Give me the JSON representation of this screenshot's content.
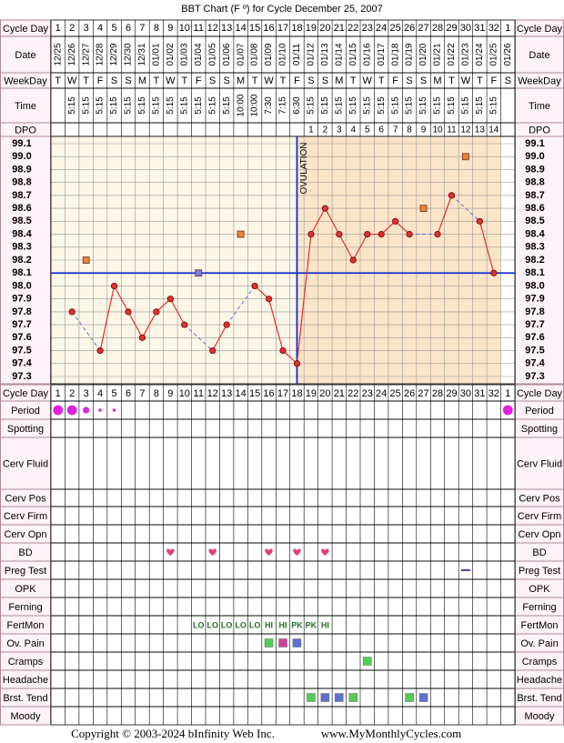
{
  "labels": {
    "cycle_day": "Cycle Day",
    "date": "Date",
    "weekday": "WeekDay",
    "time": "Time",
    "dpo": "DPO",
    "period": "Period",
    "spotting": "Spotting",
    "cerv_fluid": "Cerv Fluid",
    "cerv_pos": "Cerv Pos",
    "cerv_firm": "Cerv Firm",
    "cerv_opn": "Cerv Opn",
    "bd": "BD",
    "preg_test": "Preg Test",
    "opk": "OPK",
    "ferning": "Ferning",
    "fertmon": "FertMon",
    "ov_pain": "Ov. Pain",
    "cramps": "Cramps",
    "headache": "Headache",
    "brst_tend": "Brst. Tend",
    "moody": "Moody"
  },
  "cycle_days": [
    1,
    2,
    3,
    4,
    5,
    6,
    7,
    8,
    9,
    10,
    11,
    12,
    13,
    14,
    15,
    16,
    17,
    18,
    19,
    20,
    21,
    22,
    23,
    24,
    25,
    26,
    27,
    28,
    29,
    30,
    31,
    32,
    1
  ],
  "dates": [
    "12/25",
    "12/26",
    "12/27",
    "12/28",
    "12/29",
    "12/30",
    "12/31",
    "01/01",
    "01/02",
    "01/03",
    "01/04",
    "01/05",
    "01/06",
    "01/07",
    "01/08",
    "01/09",
    "01/10",
    "01/11",
    "01/12",
    "01/13",
    "01/14",
    "01/15",
    "01/16",
    "01/17",
    "01/18",
    "01/19",
    "01/20",
    "01/21",
    "01/22",
    "01/23",
    "01/24",
    "01/25",
    "01/26"
  ],
  "weekdays": [
    "T",
    "W",
    "T",
    "F",
    "S",
    "S",
    "M",
    "T",
    "W",
    "T",
    "F",
    "S",
    "S",
    "M",
    "T",
    "W",
    "T",
    "F",
    "S",
    "S",
    "M",
    "T",
    "W",
    "T",
    "F",
    "S",
    "S",
    "M",
    "T",
    "W",
    "T",
    "F",
    "S"
  ],
  "times": [
    null,
    "5:15",
    "5:15",
    "5:15",
    "5:15",
    "5:15",
    "5:15",
    "5:15",
    "5:15",
    "5:15",
    "5:15",
    "5:15",
    "5:15",
    "10:00",
    "10:00",
    "7:30",
    "7:15",
    "6:30",
    "5:15",
    "5:15",
    "5:15",
    "5:15",
    "5:15",
    "5:15",
    "5:15",
    "5:15",
    "5:15",
    "5:15",
    "5:15",
    "5:15",
    "5:15",
    "5:15",
    null
  ],
  "dpo": [
    null,
    null,
    null,
    null,
    null,
    null,
    null,
    null,
    null,
    null,
    null,
    null,
    null,
    null,
    null,
    null,
    null,
    null,
    1,
    2,
    3,
    4,
    5,
    6,
    7,
    8,
    9,
    10,
    11,
    12,
    13,
    14,
    null
  ],
  "period": [
    3,
    3,
    2,
    1,
    1,
    null,
    null,
    null,
    null,
    null,
    null,
    null,
    null,
    null,
    null,
    null,
    null,
    null,
    null,
    null,
    null,
    null,
    null,
    null,
    null,
    null,
    null,
    null,
    null,
    null,
    null,
    null,
    3
  ],
  "period_color": "#e020e0",
  "bd_days": [
    9,
    12,
    16,
    18,
    20
  ],
  "bd_color": "#e0407a",
  "preg_test": [
    {
      "day": 30,
      "color": "#7030a0"
    }
  ],
  "fertmon": [
    {
      "day": 11,
      "label": "LO"
    },
    {
      "day": 12,
      "label": "LO"
    },
    {
      "day": 13,
      "label": "LO"
    },
    {
      "day": 14,
      "label": "LO"
    },
    {
      "day": 15,
      "label": "LO"
    },
    {
      "day": 16,
      "label": "HI"
    },
    {
      "day": 17,
      "label": "HI"
    },
    {
      "day": 18,
      "label": "PK"
    },
    {
      "day": 19,
      "label": "PK"
    },
    {
      "day": 20,
      "label": "HI"
    }
  ],
  "fertmon_color": "#207020",
  "ov_pain": [
    {
      "day": 16,
      "color": "#55cc55"
    },
    {
      "day": 17,
      "color": "#d040a0"
    },
    {
      "day": 18,
      "color": "#6070d0"
    }
  ],
  "cramps": [
    {
      "day": 23,
      "color": "#55cc55"
    }
  ],
  "brst_tend": [
    {
      "day": 19,
      "color": "#55cc55"
    },
    {
      "day": 20,
      "color": "#6070d0"
    },
    {
      "day": 21,
      "color": "#6070d0"
    },
    {
      "day": 22,
      "color": "#55cc55"
    },
    {
      "day": 26,
      "color": "#55cc55"
    },
    {
      "day": 27,
      "color": "#6070d0"
    }
  ],
  "footer": {
    "copyright": "Copyright © 2003-2024 bInfinity Web Inc.",
    "site": "www.MyMonthlyCycles.com"
  },
  "chart_data": {
    "type": "line",
    "title": "BBT Chart (F º) for Cycle December 25, 2007",
    "values": [
      null,
      97.8,
      null,
      97.5,
      98.0,
      97.8,
      97.6,
      97.8,
      97.9,
      97.7,
      null,
      97.5,
      97.7,
      null,
      98.0,
      97.9,
      97.5,
      97.4,
      98.4,
      98.6,
      98.4,
      98.2,
      98.4,
      98.4,
      98.5,
      98.4,
      null,
      98.4,
      98.7,
      null,
      98.5,
      98.1,
      null
    ],
    "color": "#e03030",
    "discarded": [
      null,
      null,
      98.2,
      null,
      null,
      null,
      null,
      null,
      null,
      null,
      98.1,
      null,
      null,
      98.4,
      null,
      null,
      null,
      null,
      null,
      null,
      null,
      null,
      null,
      null,
      null,
      null,
      98.6,
      null,
      null,
      99.0,
      null,
      null,
      null
    ],
    "discarded_colors": [
      null,
      null,
      "#f08030",
      null,
      null,
      null,
      null,
      null,
      null,
      null,
      "#8080d0",
      null,
      null,
      "#f08030",
      null,
      null,
      null,
      null,
      null,
      null,
      null,
      null,
      null,
      null,
      null,
      null,
      "#f08030",
      null,
      null,
      "#f08030",
      null,
      null,
      null
    ],
    "ylim": [
      97.3,
      99.1
    ],
    "yticks": [
      97.3,
      97.4,
      97.5,
      97.6,
      97.7,
      97.8,
      97.9,
      {
        "value": 98.0,
        "label": "98.0"
      },
      98.1,
      98.2,
      98.3,
      98.4,
      98.5,
      98.6,
      98.7,
      98.8,
      98.9,
      {
        "value": 99.0,
        "label": "99.0"
      },
      99.1
    ],
    "coverline": 98.1,
    "coverline_color": "#1030d0",
    "ovulation_day": 18,
    "ovulation_label": "OVULATION",
    "pre_color": "#fbf6e6",
    "post_color": "#fbe5c8",
    "grid": true
  }
}
